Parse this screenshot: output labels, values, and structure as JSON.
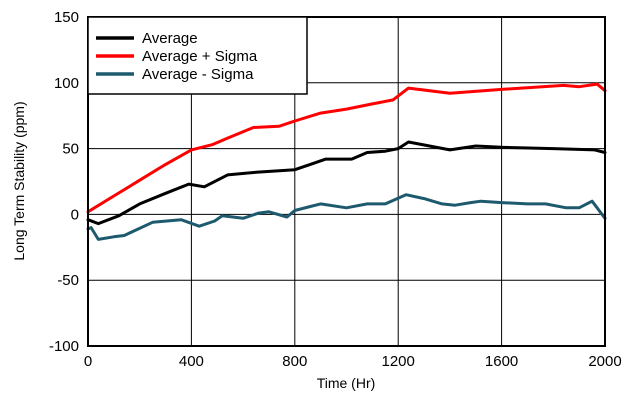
{
  "chart_data": {
    "type": "line",
    "title": "",
    "xlabel": "Time (Hr)",
    "ylabel": "Long Term Stability (ppm)",
    "xlim": [
      0,
      2000
    ],
    "ylim": [
      -100,
      150
    ],
    "xticks": [
      0,
      400,
      800,
      1200,
      1600,
      2000
    ],
    "yticks": [
      150,
      100,
      50,
      0,
      -50,
      -100
    ],
    "xtick_labels": [
      "0",
      "400",
      "800",
      "1200",
      "1600",
      "2000"
    ],
    "ytick_labels": [
      "150",
      "100",
      "50",
      "0",
      "-50",
      "-100"
    ],
    "grid": true,
    "legend_position": "top-left",
    "series": [
      {
        "name": "Average",
        "color": "#000000",
        "x": [
          0,
          40,
          120,
          200,
          300,
          390,
          450,
          540,
          650,
          800,
          860,
          920,
          1020,
          1080,
          1150,
          1200,
          1240,
          1400,
          1500,
          1600,
          1800,
          1960,
          2000
        ],
        "y": [
          -4,
          -7,
          -1,
          8,
          16,
          23,
          21,
          30,
          32,
          34,
          38,
          42,
          42,
          47,
          48,
          50,
          55,
          49,
          52,
          51,
          50,
          49,
          47
        ]
      },
      {
        "name": "Average + Sigma",
        "color": "#ff0000",
        "x": [
          0,
          100,
          200,
          300,
          400,
          440,
          480,
          540,
          640,
          740,
          800,
          900,
          1000,
          1100,
          1180,
          1240,
          1400,
          1600,
          1840,
          1900,
          1970,
          2000
        ],
        "y": [
          2,
          14,
          26,
          38,
          49,
          51,
          53,
          58,
          66,
          67,
          71,
          77,
          80,
          84,
          87,
          96,
          92,
          95,
          98,
          97,
          99,
          94
        ]
      },
      {
        "name": "Average - Sigma",
        "color": "#1e5a6e",
        "x": [
          0,
          12,
          40,
          100,
          140,
          250,
          360,
          430,
          490,
          520,
          600,
          660,
          700,
          770,
          800,
          860,
          900,
          1000,
          1080,
          1150,
          1230,
          1300,
          1370,
          1420,
          1480,
          1520,
          1600,
          1700,
          1770,
          1850,
          1900,
          1950,
          2000
        ],
        "y": [
          -11,
          -10,
          -19,
          -17,
          -16,
          -6,
          -4,
          -9,
          -5,
          -1,
          -3,
          1,
          2,
          -2,
          3,
          6,
          8,
          5,
          8,
          8,
          15,
          12,
          8,
          7,
          9,
          10,
          9,
          8,
          8,
          5,
          5,
          10,
          -3
        ]
      }
    ]
  }
}
